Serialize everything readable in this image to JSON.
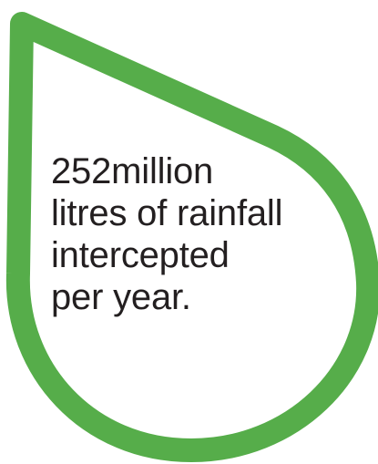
{
  "graphic": {
    "shape_icon": "droplet-icon",
    "outline_color": "#56ad4a",
    "fill_color": "#ffffff",
    "text_color": "#231f20"
  },
  "statement": {
    "line1": "252million",
    "line2": "litres of rainfall",
    "line3": "intercepted",
    "line4": "per year."
  }
}
